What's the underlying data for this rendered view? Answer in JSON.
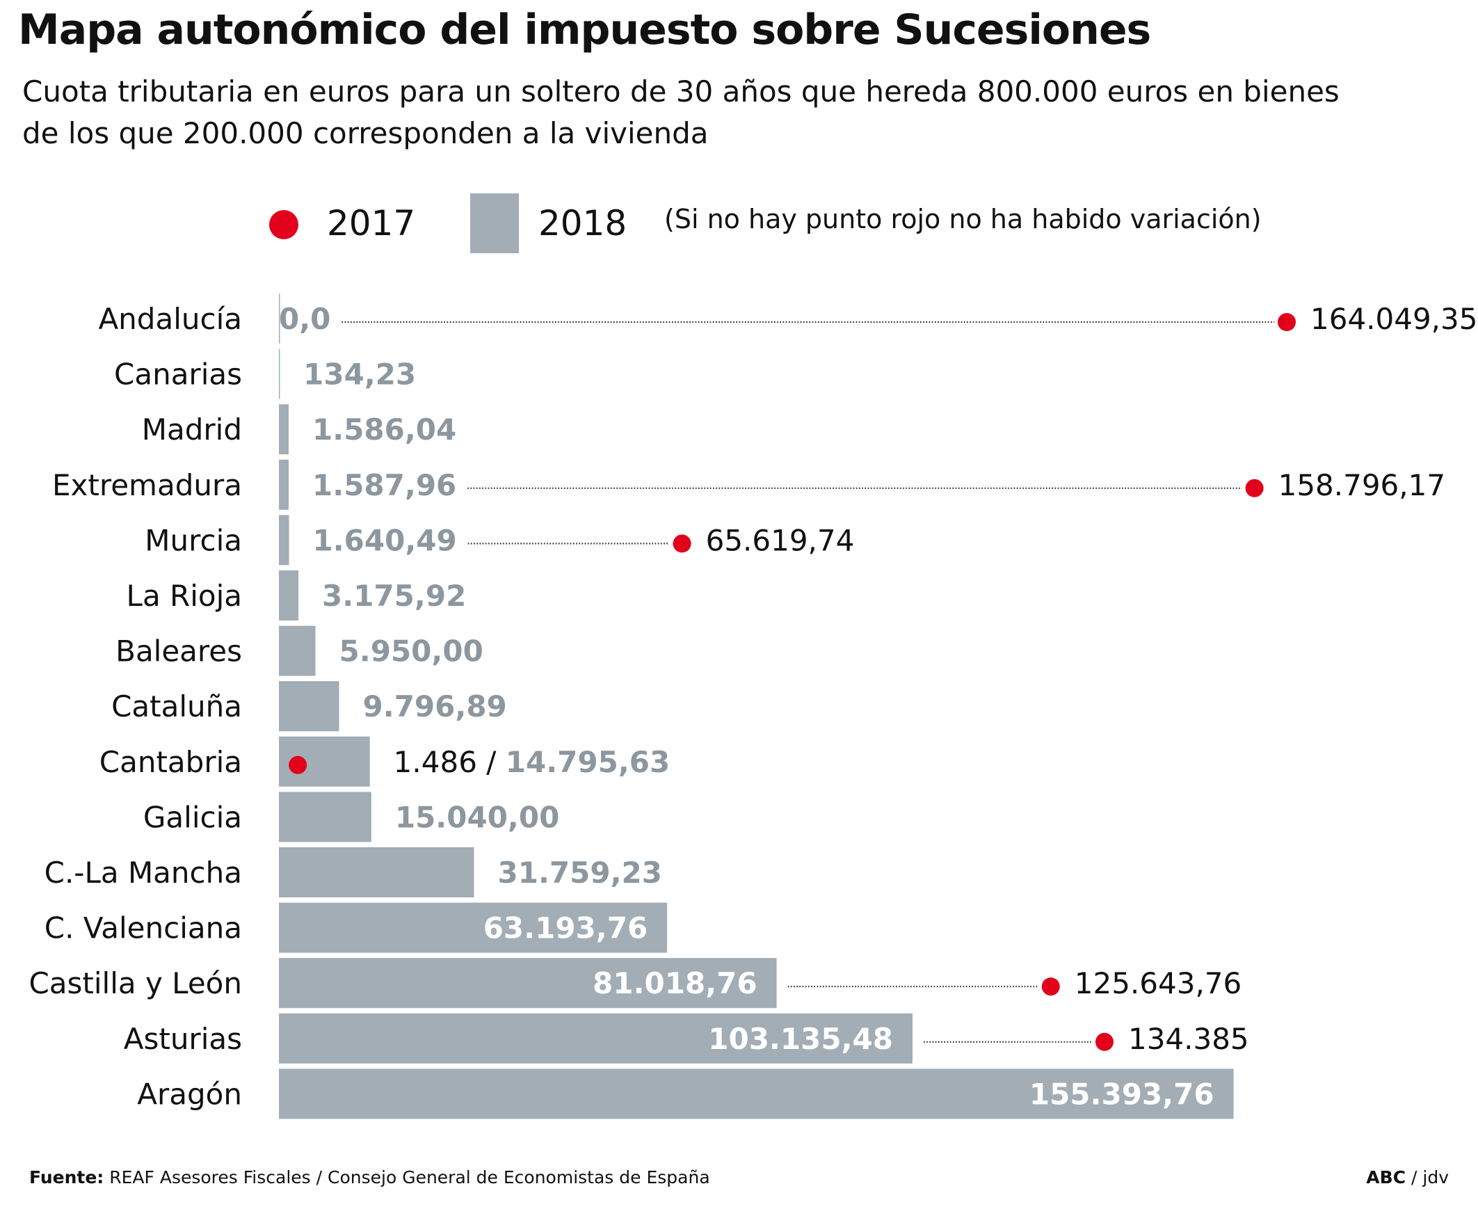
{
  "title": "Mapa autonómico del impuesto sobre Sucesiones",
  "subtitle": "Cuota tributaria en euros para un soltero de 30 años que hereda 800.000 euros en bienes de los que 200.000 corresponden a la vivienda",
  "legend": {
    "series_2017": "2017",
    "series_2018": "2018",
    "note": "(Si no hay punto rojo no ha habido variación)"
  },
  "colors": {
    "bar": "#a2adb5",
    "dot": "#e2001a",
    "bar_label": "#8c979f",
    "bar_label_inside": "#ffffff",
    "text": "#111111"
  },
  "footer": {
    "source_label": "Fuente:",
    "source_text": " REAF Asesores Fiscales / Consejo General de Economistas de España",
    "credit_bold": "ABC",
    "credit_text": " / jdv"
  },
  "chart_data": {
    "type": "bar",
    "orientation": "horizontal",
    "categories": [
      "Andalucía",
      "Canarias",
      "Madrid",
      "Extremadura",
      "Murcia",
      "La Rioja",
      "Baleares",
      "Cataluña",
      "Cantabria",
      "Galicia",
      "C.-La Mancha",
      "C. Valenciana",
      "Castilla y León",
      "Asturias",
      "Aragón"
    ],
    "series": [
      {
        "name": "2018",
        "values": [
          0.0,
          134.23,
          1586.04,
          1587.96,
          1640.49,
          3175.92,
          5950.0,
          9796.89,
          14795.63,
          15040.0,
          31759.23,
          63193.76,
          81018.76,
          103135.48,
          155393.76
        ],
        "labels": [
          "0,0",
          "134,23",
          "1.586,04",
          "1.587,96",
          "1.640,49",
          "3.175,92",
          "5.950,00",
          "9.796,89",
          "14.795,63",
          "15.040,00",
          "31.759,23",
          "63.193,76",
          "81.018,76",
          "103.135,48",
          "155.393,76"
        ]
      },
      {
        "name": "2017",
        "values": [
          164049.35,
          null,
          null,
          158796.17,
          65619.74,
          null,
          null,
          null,
          1486,
          null,
          null,
          null,
          125643.76,
          134385,
          null
        ],
        "labels": [
          "164.049,35",
          null,
          null,
          "158.796,17",
          "65.619,74",
          null,
          null,
          null,
          "1.486",
          null,
          null,
          null,
          "125.643,76",
          "134.385",
          null
        ]
      }
    ],
    "xlim": [
      0,
      164049.35
    ]
  }
}
